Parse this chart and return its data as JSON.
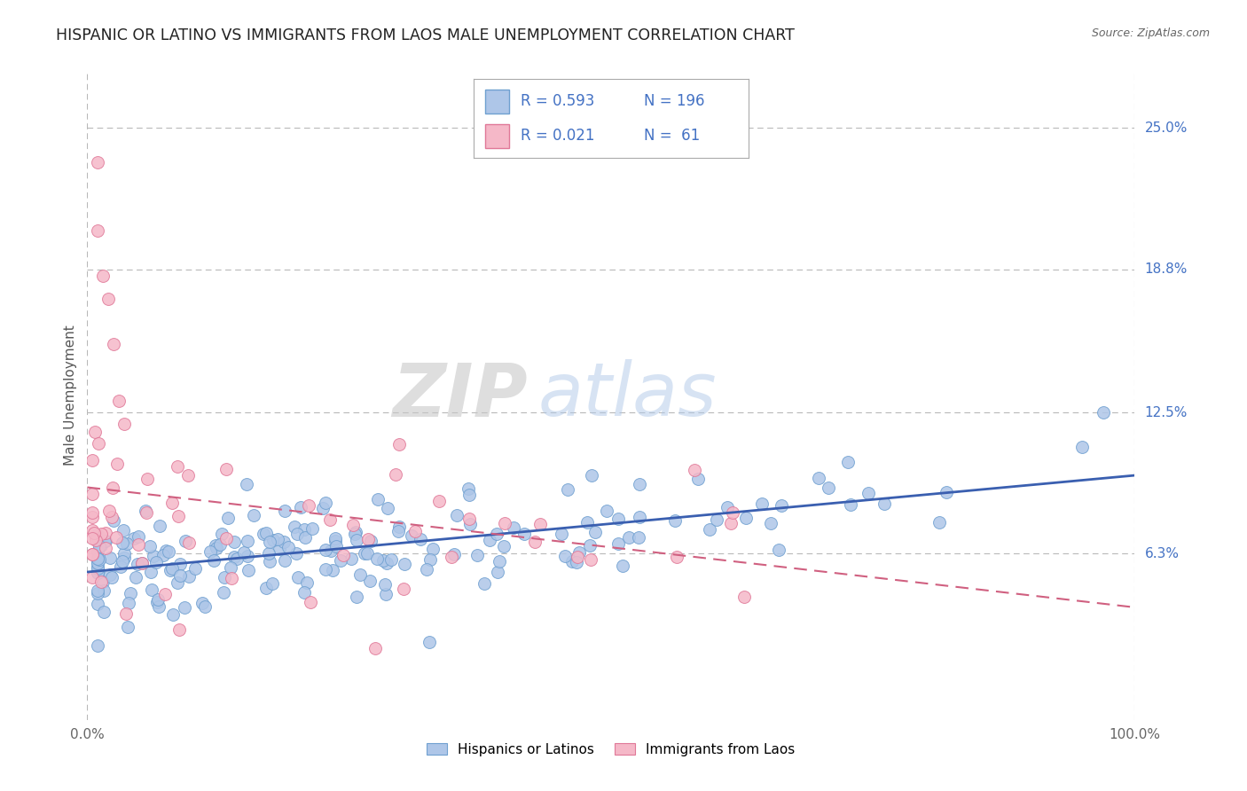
{
  "title": "HISPANIC OR LATINO VS IMMIGRANTS FROM LAOS MALE UNEMPLOYMENT CORRELATION CHART",
  "source": "Source: ZipAtlas.com",
  "ylabel": "Male Unemployment",
  "x_tick_labels": [
    "0.0%",
    "100.0%"
  ],
  "y_tick_labels": [
    "6.3%",
    "12.5%",
    "18.8%",
    "25.0%"
  ],
  "y_tick_values": [
    0.063,
    0.125,
    0.188,
    0.25
  ],
  "x_min": 0.0,
  "x_max": 1.0,
  "y_min": -0.01,
  "y_max": 0.275,
  "blue_color": "#aec6e8",
  "blue_edge": "#6fa0d0",
  "pink_color": "#f5b8c8",
  "pink_edge": "#e07898",
  "line_blue": "#3a5fb0",
  "line_pink": "#d06080",
  "legend_blue_R": "0.593",
  "legend_blue_N": "196",
  "legend_pink_R": "0.021",
  "legend_pink_N": "61",
  "legend_label_blue": "Hispanics or Latinos",
  "legend_label_pink": "Immigrants from Laos",
  "watermark_zip": "ZIP",
  "watermark_atlas": "atlas",
  "tick_color": "#4472c4",
  "title_fontsize": 12.5,
  "axis_label_fontsize": 11,
  "tick_fontsize": 11,
  "blue_R": 0.593,
  "pink_R": 0.021,
  "blue_N": 196,
  "pink_N": 61
}
